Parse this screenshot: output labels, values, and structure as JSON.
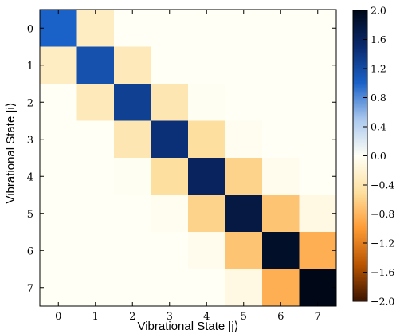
{
  "chart_data": {
    "type": "heatmap",
    "xlabel": "Vibrational State |j⟩",
    "ylabel": "Vibrational State |i⟩",
    "x_categories": [
      "0",
      "1",
      "2",
      "3",
      "4",
      "5",
      "6",
      "7"
    ],
    "y_categories": [
      "0",
      "1",
      "2",
      "3",
      "4",
      "5",
      "6",
      "7"
    ],
    "values": [
      [
        1.0,
        -0.3,
        0.0,
        0.0,
        0.0,
        0.0,
        0.0,
        0.0
      ],
      [
        -0.3,
        1.15,
        -0.35,
        0.0,
        0.0,
        0.0,
        0.0,
        0.0
      ],
      [
        0.0,
        -0.35,
        1.3,
        -0.4,
        -0.02,
        0.0,
        0.0,
        0.0
      ],
      [
        0.0,
        0.0,
        -0.4,
        1.45,
        -0.5,
        -0.03,
        0.0,
        0.0
      ],
      [
        0.0,
        0.0,
        -0.02,
        -0.5,
        1.6,
        -0.6,
        -0.05,
        0.0
      ],
      [
        0.0,
        0.0,
        0.0,
        -0.03,
        -0.6,
        1.75,
        -0.7,
        -0.1
      ],
      [
        0.0,
        0.0,
        0.0,
        0.0,
        -0.05,
        -0.7,
        1.9,
        -0.85
      ],
      [
        0.0,
        0.0,
        0.0,
        0.0,
        0.0,
        -0.1,
        -0.85,
        2.0
      ]
    ],
    "colorbar": {
      "min": -2.0,
      "max": 2.0,
      "ticks": [
        "2.0",
        "1.6",
        "1.2",
        "0.8",
        "0.4",
        "0.0",
        "−0.4",
        "−0.8",
        "−1.2",
        "−1.6",
        "−2.0"
      ],
      "colormap": [
        "#3a1400",
        "#b95500",
        "#fe9a33",
        "#fde0a0",
        "#fffff5",
        "#aac8ee",
        "#1a62c8",
        "#0a2a6e",
        "#000818"
      ]
    }
  }
}
